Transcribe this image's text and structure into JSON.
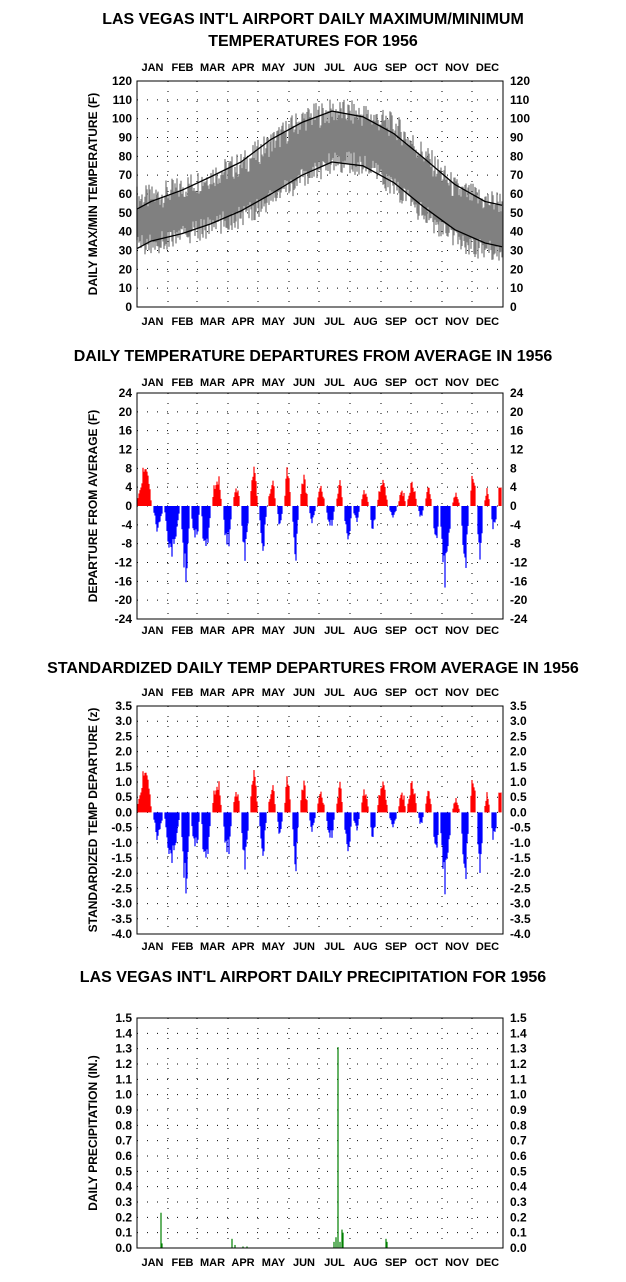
{
  "chart_data": [
    {
      "id": "temps",
      "type": "area",
      "title": "LAS VEGAS INT'L AIRPORT DAILY MAXIMUM/MINIMUM\nTEMPERATURES FOR 1956",
      "ylabel": "DAILY MAX/MIN TEMPERATURE (F)",
      "months": [
        "JAN",
        "FEB",
        "MAR",
        "APR",
        "MAY",
        "JUN",
        "JUL",
        "AUG",
        "SEP",
        "OCT",
        "NOV",
        "DEC"
      ],
      "ylim": [
        0,
        120
      ],
      "yticks": [
        "0",
        "10",
        "20",
        "30",
        "40",
        "50",
        "60",
        "70",
        "80",
        "90",
        "100",
        "110",
        "120"
      ],
      "grid": true,
      "series": [
        {
          "role": "range",
          "color": "#808080",
          "monthly_high": [
            58,
            63,
            70,
            76,
            88,
            100,
            104,
            102,
            96,
            80,
            62,
            56
          ],
          "monthly_low": [
            33,
            38,
            43,
            48,
            58,
            68,
            78,
            75,
            63,
            48,
            35,
            30
          ]
        },
        {
          "role": "normal_max",
          "color": "#000000",
          "x": [
            1,
            15,
            46,
            74,
            105,
            135,
            166,
            196,
            227,
            258,
            288,
            319,
            349,
            366
          ],
          "y": [
            52,
            56,
            62,
            69,
            77,
            89,
            98,
            104,
            101,
            92,
            79,
            65,
            56,
            54
          ]
        },
        {
          "role": "normal_min",
          "color": "#000000",
          "x": [
            1,
            15,
            46,
            74,
            105,
            135,
            166,
            196,
            227,
            258,
            288,
            319,
            349,
            366
          ],
          "y": [
            31,
            35,
            39,
            44,
            51,
            60,
            70,
            77,
            75,
            66,
            53,
            41,
            34,
            32
          ]
        }
      ]
    },
    {
      "id": "depart",
      "type": "area",
      "title": "DAILY TEMPERATURE DEPARTURES FROM AVERAGE IN 1956",
      "ylabel": "DEPARTURE FROM AVERAGE (F)",
      "ylim": [
        -24,
        24
      ],
      "yticks": [
        "-24",
        "-20",
        "-16",
        "-12",
        "-8",
        "-4",
        "0",
        "4",
        "8",
        "12",
        "16",
        "20",
        "24"
      ],
      "grid": true,
      "positive_color": "#ff0000",
      "negative_color": "#0000ff",
      "segments": [
        {
          "start": 1,
          "end": 16,
          "peak": 9
        },
        {
          "start": 17,
          "end": 27,
          "peak": -6
        },
        {
          "start": 28,
          "end": 44,
          "peak": -11
        },
        {
          "start": 45,
          "end": 54,
          "peak": -17
        },
        {
          "start": 55,
          "end": 64,
          "peak": -9
        },
        {
          "start": 65,
          "end": 75,
          "peak": -12
        },
        {
          "start": 76,
          "end": 86,
          "peak": 8
        },
        {
          "start": 87,
          "end": 96,
          "peak": -10
        },
        {
          "start": 97,
          "end": 104,
          "peak": 5
        },
        {
          "start": 105,
          "end": 113,
          "peak": -13
        },
        {
          "start": 114,
          "end": 122,
          "peak": 9
        },
        {
          "start": 123,
          "end": 131,
          "peak": -10
        },
        {
          "start": 132,
          "end": 140,
          "peak": 6
        },
        {
          "start": 141,
          "end": 147,
          "peak": -5
        },
        {
          "start": 148,
          "end": 155,
          "peak": 9
        },
        {
          "start": 156,
          "end": 163,
          "peak": -12
        },
        {
          "start": 164,
          "end": 172,
          "peak": 7
        },
        {
          "start": 173,
          "end": 180,
          "peak": -4
        },
        {
          "start": 181,
          "end": 189,
          "peak": 5
        },
        {
          "start": 190,
          "end": 199,
          "peak": -5
        },
        {
          "start": 200,
          "end": 207,
          "peak": 6
        },
        {
          "start": 208,
          "end": 216,
          "peak": -10
        },
        {
          "start": 217,
          "end": 224,
          "peak": -4
        },
        {
          "start": 225,
          "end": 233,
          "peak": 4
        },
        {
          "start": 234,
          "end": 240,
          "peak": -6
        },
        {
          "start": 241,
          "end": 252,
          "peak": 6
        },
        {
          "start": 253,
          "end": 261,
          "peak": -3
        },
        {
          "start": 262,
          "end": 270,
          "peak": 4
        },
        {
          "start": 271,
          "end": 281,
          "peak": 6
        },
        {
          "start": 282,
          "end": 288,
          "peak": -3
        },
        {
          "start": 289,
          "end": 296,
          "peak": 5
        },
        {
          "start": 297,
          "end": 303,
          "peak": -10
        },
        {
          "start": 304,
          "end": 315,
          "peak": -18
        },
        {
          "start": 316,
          "end": 324,
          "peak": 3
        },
        {
          "start": 325,
          "end": 333,
          "peak": -15
        },
        {
          "start": 334,
          "end": 340,
          "peak": 9
        },
        {
          "start": 341,
          "end": 347,
          "peak": -12
        },
        {
          "start": 348,
          "end": 354,
          "peak": 4
        },
        {
          "start": 355,
          "end": 361,
          "peak": -6
        },
        {
          "start": 362,
          "end": 366,
          "peak": 6
        }
      ]
    },
    {
      "id": "standard",
      "type": "area",
      "title": "STANDARDIZED DAILY TEMP DEPARTURES FROM AVERAGE IN 1956",
      "ylabel": "STANDARDIZED TEMP DEPARTURE (z)",
      "ylim": [
        -4,
        3.5
      ],
      "yticks": [
        "-4.0",
        "-3.5",
        "-3.0",
        "-2.5",
        "-2.0",
        "-1.5",
        "-1.0",
        "-0.5",
        "0.0",
        "0.5",
        "1.0",
        "1.5",
        "2.0",
        "2.5",
        "3.0",
        "3.5"
      ],
      "grid": true,
      "positive_color": "#ff0000",
      "negative_color": "#0000ff",
      "segments": [
        {
          "start": 1,
          "end": 16,
          "peak": 1.5
        },
        {
          "start": 17,
          "end": 27,
          "peak": -1.0
        },
        {
          "start": 28,
          "end": 44,
          "peak": -1.7
        },
        {
          "start": 45,
          "end": 54,
          "peak": -2.8
        },
        {
          "start": 55,
          "end": 64,
          "peak": -1.5
        },
        {
          "start": 65,
          "end": 75,
          "peak": -2.1
        },
        {
          "start": 76,
          "end": 86,
          "peak": 1.3
        },
        {
          "start": 87,
          "end": 96,
          "peak": -1.6
        },
        {
          "start": 97,
          "end": 104,
          "peak": 0.9
        },
        {
          "start": 105,
          "end": 113,
          "peak": -2.1
        },
        {
          "start": 114,
          "end": 122,
          "peak": 1.5
        },
        {
          "start": 123,
          "end": 131,
          "peak": -1.5
        },
        {
          "start": 132,
          "end": 140,
          "peak": 1.0
        },
        {
          "start": 141,
          "end": 147,
          "peak": -0.9
        },
        {
          "start": 148,
          "end": 155,
          "peak": 1.3
        },
        {
          "start": 156,
          "end": 163,
          "peak": -2.0
        },
        {
          "start": 164,
          "end": 172,
          "peak": 1.1
        },
        {
          "start": 173,
          "end": 180,
          "peak": -0.7
        },
        {
          "start": 181,
          "end": 189,
          "peak": 0.8
        },
        {
          "start": 190,
          "end": 199,
          "peak": -1.0
        },
        {
          "start": 200,
          "end": 207,
          "peak": 1.1
        },
        {
          "start": 208,
          "end": 216,
          "peak": -1.8
        },
        {
          "start": 217,
          "end": 224,
          "peak": -0.7
        },
        {
          "start": 225,
          "end": 233,
          "peak": 0.9
        },
        {
          "start": 234,
          "end": 240,
          "peak": -1.0
        },
        {
          "start": 241,
          "end": 252,
          "peak": 1.1
        },
        {
          "start": 253,
          "end": 261,
          "peak": -0.6
        },
        {
          "start": 262,
          "end": 270,
          "peak": 0.8
        },
        {
          "start": 271,
          "end": 281,
          "peak": 1.2
        },
        {
          "start": 282,
          "end": 288,
          "peak": -0.5
        },
        {
          "start": 289,
          "end": 296,
          "peak": 0.9
        },
        {
          "start": 297,
          "end": 303,
          "peak": -1.7
        },
        {
          "start": 304,
          "end": 315,
          "peak": -2.8
        },
        {
          "start": 316,
          "end": 324,
          "peak": 0.5
        },
        {
          "start": 325,
          "end": 333,
          "peak": -2.5
        },
        {
          "start": 334,
          "end": 340,
          "peak": 1.5
        },
        {
          "start": 341,
          "end": 347,
          "peak": -2.1
        },
        {
          "start": 348,
          "end": 354,
          "peak": 0.7
        },
        {
          "start": 355,
          "end": 361,
          "peak": -1.1
        },
        {
          "start": 362,
          "end": 366,
          "peak": 1.0
        }
      ]
    },
    {
      "id": "precip",
      "type": "bar",
      "title": "LAS VEGAS INT'L AIRPORT DAILY PRECIPITATION FOR 1956",
      "ylabel": "DAILY PRECIPITATION (IN.)",
      "ylim": [
        0,
        1.5
      ],
      "yticks": [
        "0.0",
        "0.1",
        "0.2",
        "0.3",
        "0.4",
        "0.5",
        "0.6",
        "0.7",
        "0.8",
        "0.9",
        "1.0",
        "1.1",
        "1.2",
        "1.3",
        "1.4",
        "1.5"
      ],
      "grid": true,
      "color": "#008000",
      "bars": [
        {
          "day": 25,
          "value": 0.23
        },
        {
          "day": 26,
          "value": 0.03
        },
        {
          "day": 96,
          "value": 0.06
        },
        {
          "day": 99,
          "value": 0.02
        },
        {
          "day": 107,
          "value": 0.01
        },
        {
          "day": 111,
          "value": 0.01
        },
        {
          "day": 198,
          "value": 0.04
        },
        {
          "day": 200,
          "value": 0.07
        },
        {
          "day": 202,
          "value": 1.31
        },
        {
          "day": 204,
          "value": 0.04
        },
        {
          "day": 206,
          "value": 0.12
        },
        {
          "day": 207,
          "value": 0.1
        },
        {
          "day": 250,
          "value": 0.06
        },
        {
          "day": 251,
          "value": 0.04
        }
      ]
    }
  ]
}
